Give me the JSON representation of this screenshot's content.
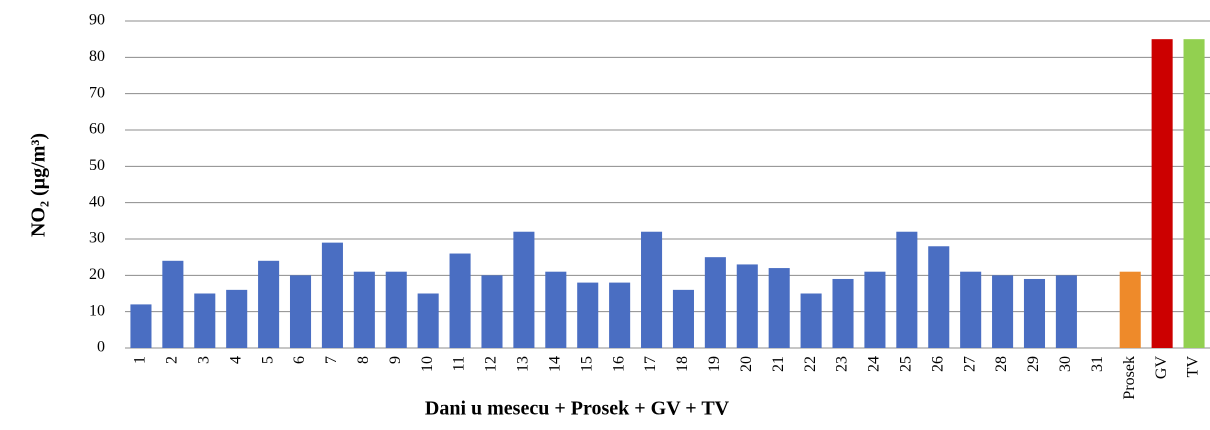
{
  "chart_data": {
    "type": "bar",
    "y_label": "NO₂ (µg/m³)",
    "x_label": "Dani u mesecu + Prosek + GV + TV",
    "categories": [
      "1",
      "2",
      "3",
      "4",
      "5",
      "6",
      "7",
      "8",
      "9",
      "10",
      "11",
      "12",
      "13",
      "14",
      "15",
      "16",
      "17",
      "18",
      "19",
      "20",
      "21",
      "22",
      "23",
      "24",
      "25",
      "26",
      "27",
      "28",
      "29",
      "30",
      "31",
      "Prosek",
      "GV",
      "TV"
    ],
    "values": [
      12,
      24,
      15,
      16,
      24,
      20,
      29,
      21,
      21,
      15,
      26,
      20,
      32,
      21,
      18,
      18,
      32,
      16,
      25,
      23,
      22,
      15,
      19,
      21,
      32,
      28,
      21,
      20,
      19,
      20,
      null,
      21,
      85,
      85
    ],
    "colors": [
      "#4a6ec2",
      "#4a6ec2",
      "#4a6ec2",
      "#4a6ec2",
      "#4a6ec2",
      "#4a6ec2",
      "#4a6ec2",
      "#4a6ec2",
      "#4a6ec2",
      "#4a6ec2",
      "#4a6ec2",
      "#4a6ec2",
      "#4a6ec2",
      "#4a6ec2",
      "#4a6ec2",
      "#4a6ec2",
      "#4a6ec2",
      "#4a6ec2",
      "#4a6ec2",
      "#4a6ec2",
      "#4a6ec2",
      "#4a6ec2",
      "#4a6ec2",
      "#4a6ec2",
      "#4a6ec2",
      "#4a6ec2",
      "#4a6ec2",
      "#4a6ec2",
      "#4a6ec2",
      "#4a6ec2",
      "#4a6ec2",
      "#ee8a2a",
      "#cc0000",
      "#92d050"
    ],
    "ylim": [
      0,
      90
    ],
    "yticks": [
      0,
      10,
      20,
      30,
      40,
      50,
      60,
      70,
      80,
      90
    ],
    "grid": true
  }
}
